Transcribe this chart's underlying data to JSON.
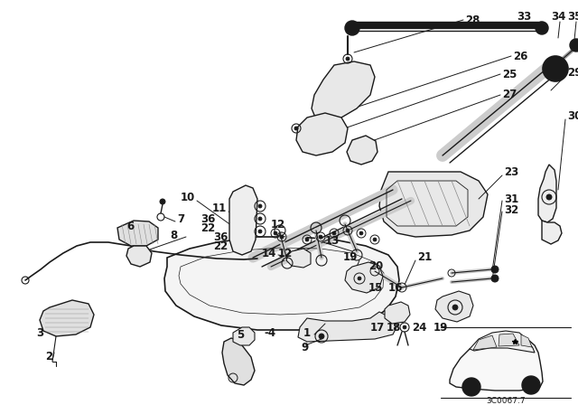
{
  "background_color": "#ffffff",
  "line_color": "#1a1a1a",
  "diagram_code": "3C0067.7",
  "fig_width": 6.4,
  "fig_height": 4.48,
  "dpi": 100
}
